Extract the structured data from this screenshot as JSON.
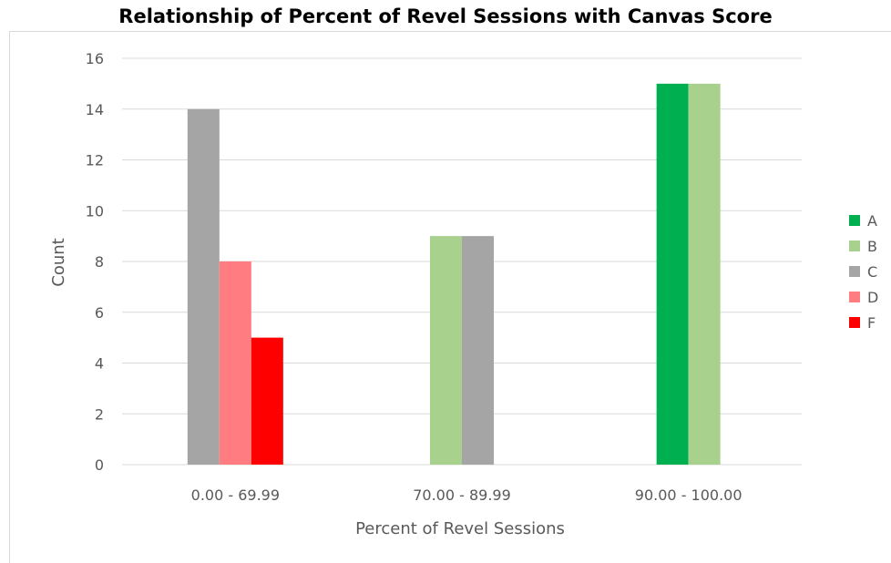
{
  "chart_data": {
    "type": "bar",
    "title": "Relationship of Percent of Revel Sessions with Canvas Score",
    "xlabel": "Percent of Revel Sessions",
    "ylabel": "Count",
    "categories": [
      "0.00 - 69.99",
      "70.00 - 89.99",
      "90.00 - 100.00"
    ],
    "ylim": [
      0,
      16
    ],
    "yticks": [
      0,
      2,
      4,
      6,
      8,
      10,
      12,
      14,
      16
    ],
    "grid": true,
    "legend_position": "right",
    "series": [
      {
        "name": "A",
        "color": "#00b050",
        "values": [
          0,
          0,
          15
        ]
      },
      {
        "name": "B",
        "color": "#a9d18e",
        "values": [
          0,
          9,
          15
        ]
      },
      {
        "name": "C",
        "color": "#a5a5a5",
        "values": [
          14,
          9,
          0
        ]
      },
      {
        "name": "D",
        "color": "#ff7c80",
        "values": [
          8,
          0,
          0
        ]
      },
      {
        "name": "F",
        "color": "#ff0000",
        "values": [
          5,
          0,
          0
        ]
      }
    ]
  }
}
